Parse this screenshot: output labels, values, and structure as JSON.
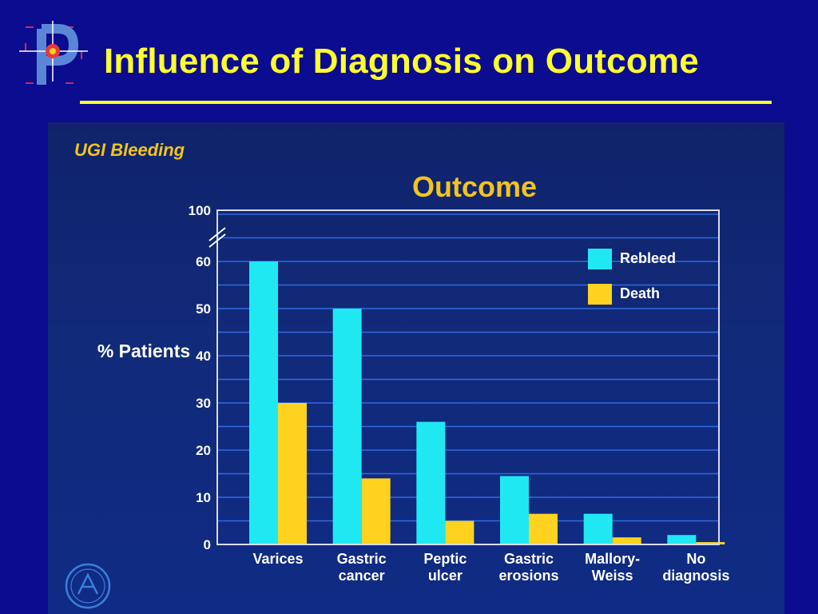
{
  "slide": {
    "title": "Influence of Diagnosis on Outcome"
  },
  "panel": {
    "heading": "UGI Bleeding"
  },
  "colors": {
    "background": "#0b0c8f",
    "title": "#ffff2e",
    "gridline": "#2f6be0",
    "rebleed": "#20e8f2",
    "death": "#ffd21f",
    "chart_title": "#f2c41e"
  },
  "chart_data": {
    "type": "bar",
    "title": "Outcome",
    "ylabel": "% Patients",
    "xlabel": "",
    "categories": [
      "Varices",
      "Gastric\ncancer",
      "Peptic\nulcer",
      "Gastric\nerosions",
      "Mallory-\nWeiss",
      "No\ndiagnosis"
    ],
    "series": [
      {
        "name": "Rebleed",
        "values": [
          60,
          50,
          26,
          14.5,
          6.5,
          2
        ]
      },
      {
        "name": "Death",
        "values": [
          30,
          14,
          5,
          6.5,
          1.5,
          0.5
        ]
      }
    ],
    "y_ticks": [
      "0",
      "10",
      "20",
      "30",
      "40",
      "50",
      "60",
      "100"
    ],
    "y_tick_values": [
      0,
      10,
      20,
      30,
      40,
      50,
      60,
      100
    ],
    "ylim": [
      0,
      100
    ],
    "axis_break": "between 60 and 100",
    "grid": true,
    "legend_position": "top-right"
  }
}
